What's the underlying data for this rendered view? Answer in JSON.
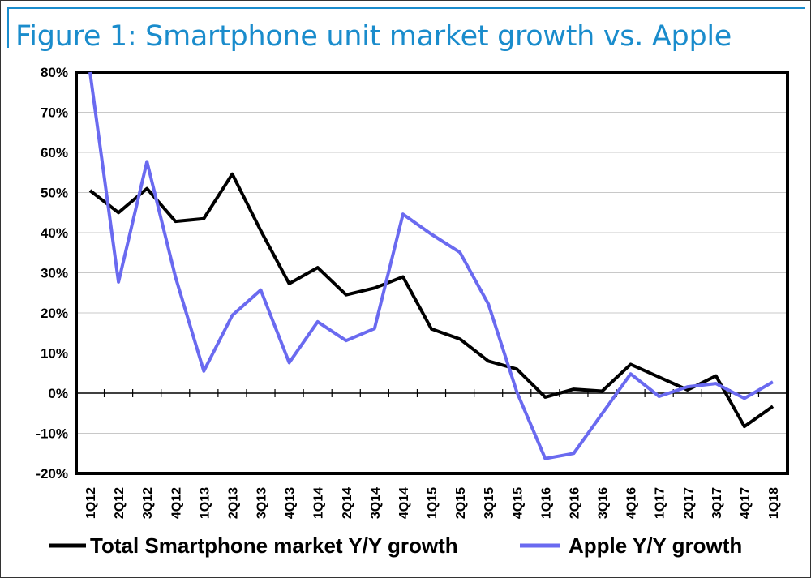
{
  "figure_title": "Figure 1: Smartphone unit market growth vs. Apple",
  "chart_data": {
    "type": "line",
    "title": "Figure 1: Smartphone unit market growth vs. Apple",
    "xlabel": "",
    "ylabel": "",
    "ylim": [
      -20,
      80
    ],
    "yticks": [
      -20,
      -10,
      0,
      10,
      20,
      30,
      40,
      50,
      60,
      70,
      80
    ],
    "ytick_labels": [
      "-20%",
      "-10%",
      "0%",
      "10%",
      "20%",
      "30%",
      "40%",
      "50%",
      "60%",
      "70%",
      "80%"
    ],
    "grid": "horizontal",
    "legend_position": "bottom",
    "categories": [
      "1Q12",
      "2Q12",
      "3Q12",
      "4Q12",
      "1Q13",
      "2Q13",
      "3Q13",
      "4Q13",
      "1Q14",
      "2Q14",
      "3Q14",
      "4Q14",
      "1Q15",
      "2Q15",
      "3Q15",
      "4Q15",
      "1Q16",
      "2Q16",
      "3Q16",
      "4Q16",
      "1Q17",
      "2Q17",
      "3Q17",
      "4Q17",
      "1Q18"
    ],
    "series": [
      {
        "name": "Total Smartphone market Y/Y growth",
        "color": "#000000",
        "values": [
          50.5,
          45,
          51,
          42.8,
          43.5,
          54.6,
          40.5,
          27.3,
          31.3,
          24.5,
          26.2,
          29,
          16,
          13.5,
          8,
          6,
          -1,
          1,
          0.5,
          7.2,
          4,
          0.8,
          4.3,
          -8.3,
          -3.3
        ]
      },
      {
        "name": "Apple Y/Y growth",
        "color": "#6a6af0",
        "values": [
          80,
          27.7,
          57.7,
          29,
          5.5,
          19.4,
          25.7,
          7.6,
          17.8,
          13.1,
          16.1,
          44.6,
          39.6,
          35.1,
          22.2,
          0.3,
          -16.3,
          -15,
          -5.1,
          4.8,
          -0.8,
          1.6,
          2.4,
          -1.3,
          2.8
        ]
      }
    ]
  }
}
